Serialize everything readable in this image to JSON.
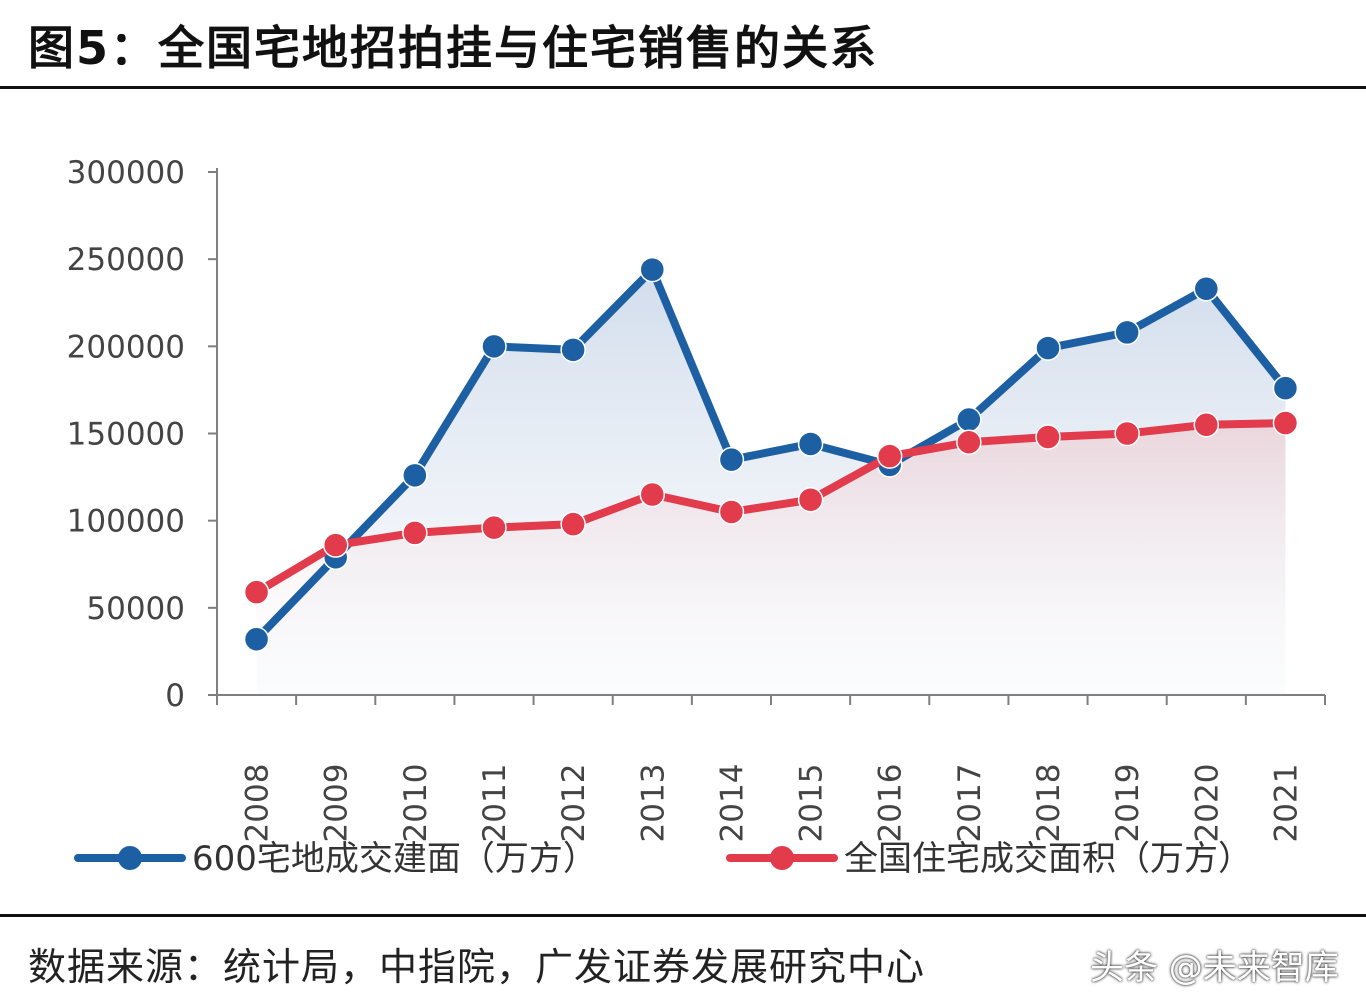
{
  "title": "图5：全国宅地招拍挂与住宅销售的关系",
  "source_text": "数据来源：统计局，中指院，广发证券发展研究中心",
  "watermark": "头条 @未来智库",
  "colors": {
    "series_blue": "#1d5fa3",
    "series_red": "#e23b4b",
    "axis": "#7f7f7f"
  },
  "chart_data": {
    "type": "line",
    "title": "",
    "xlabel": "",
    "ylabel": "",
    "x": [
      "2008",
      "2009",
      "2010",
      "2011",
      "2012",
      "2013",
      "2014",
      "2015",
      "2016",
      "2017",
      "2018",
      "2019",
      "2020",
      "2021"
    ],
    "ylim": [
      0,
      300000
    ],
    "yticks": [
      "0",
      "50000",
      "100000",
      "150000",
      "200000",
      "250000",
      "300000"
    ],
    "legend_position": "bottom",
    "grid": false,
    "series": [
      {
        "name": "600宅地成交建面（万方）",
        "color": "#1d5fa3",
        "values": [
          32000,
          79000,
          126000,
          200000,
          198000,
          244000,
          135000,
          144000,
          132000,
          158000,
          199000,
          208000,
          233000,
          176000
        ]
      },
      {
        "name": "全国住宅成交面积（万方）",
        "color": "#e23b4b",
        "values": [
          59000,
          86000,
          93000,
          96000,
          98000,
          115000,
          105000,
          112000,
          137000,
          145000,
          148000,
          150000,
          155000,
          156000
        ]
      }
    ]
  }
}
